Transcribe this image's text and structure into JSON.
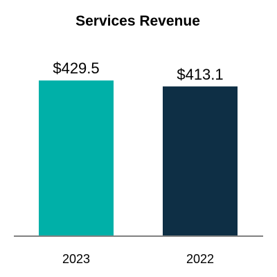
{
  "chart_data": {
    "type": "bar",
    "title": "Services Revenue",
    "categories": [
      "2023",
      "2022"
    ],
    "values": [
      429.5,
      413.1
    ],
    "data_labels": [
      "$429.5",
      "$413.1"
    ],
    "colors": [
      "#00b0a8",
      "#0e2f45"
    ],
    "ylim": [
      0,
      460
    ],
    "grid": false,
    "legend": "none",
    "xlabel": "",
    "ylabel": ""
  }
}
